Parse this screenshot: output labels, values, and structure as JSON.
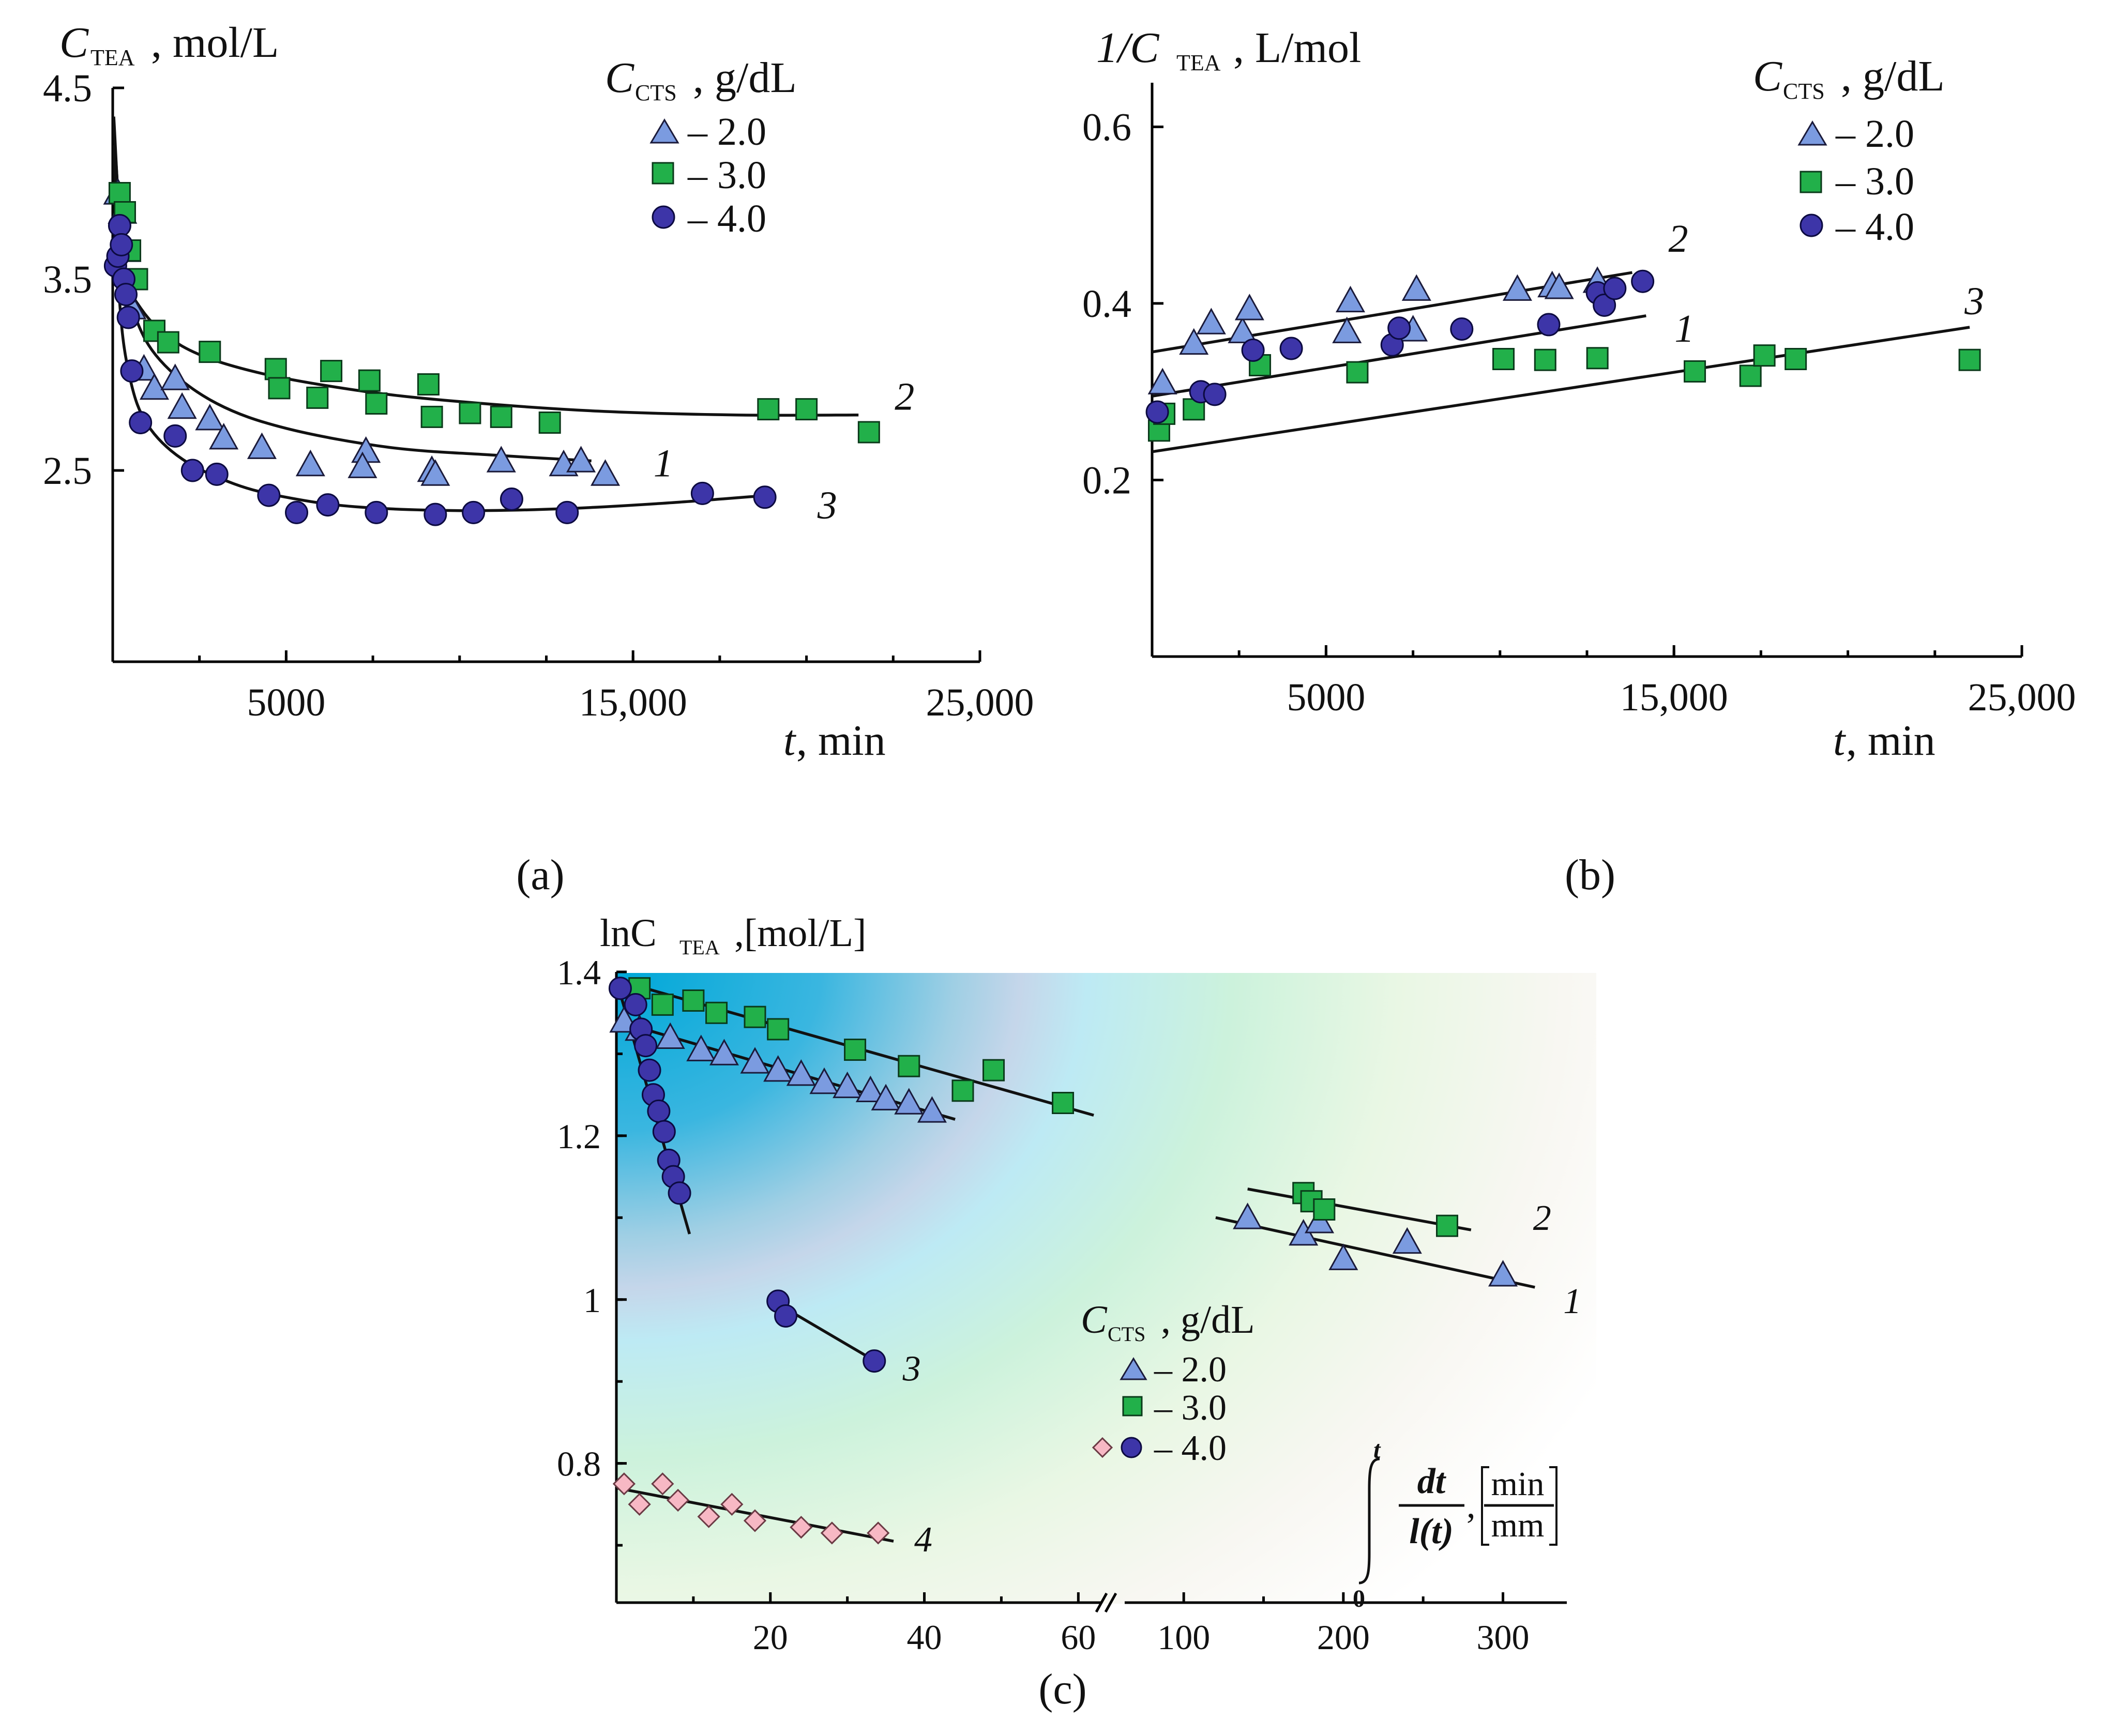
{
  "chart_data": [
    {
      "id": "a",
      "type": "scatter",
      "panel_label": "(a)",
      "ylabel_main": "C",
      "ylabel_sub": "TEA",
      "ylabel_unit": ", mol/L",
      "xlabel_var": "t",
      "xlabel_unit": ", min",
      "xlim": [
        0,
        25000
      ],
      "ylim": [
        1.5,
        4.5
      ],
      "xticks": [
        5000,
        15000,
        25000
      ],
      "xtick_labels": [
        "5000",
        "15,000",
        "25,000"
      ],
      "yticks": [
        2.5,
        3.5,
        4.5
      ],
      "ytick_labels": [
        "2.5",
        "3.5",
        "4.5"
      ],
      "legend": {
        "title_main": "C",
        "title_sub": "CTS",
        "title_unit": ", g/dL",
        "items": [
          {
            "marker": "triangle",
            "label": "– 2.0"
          },
          {
            "marker": "square",
            "label": "– 3.0"
          },
          {
            "marker": "circle",
            "label": "– 4.0"
          }
        ]
      },
      "series": [
        {
          "name": "2.0 g/dL",
          "marker": "triangle",
          "x": [
            150,
            280,
            400,
            550,
            900,
            1200,
            1800,
            2000,
            2800,
            3200,
            4300,
            5700,
            7300,
            7200,
            9200,
            9300,
            11200,
            13000,
            13500,
            14200
          ],
          "y": [
            3.95,
            3.85,
            3.65,
            3.35,
            3.03,
            2.93,
            2.98,
            2.83,
            2.77,
            2.67,
            2.62,
            2.53,
            2.6,
            2.52,
            2.5,
            2.48,
            2.55,
            2.53,
            2.55,
            2.48
          ]
        },
        {
          "name": "3.0 g/dL",
          "marker": "square",
          "x": [
            200,
            350,
            500,
            700,
            1200,
            1600,
            2800,
            4700,
            4800,
            5900,
            6300,
            7400,
            7600,
            9100,
            9200,
            10300,
            11200,
            12600,
            18900,
            20000,
            21800
          ],
          "y": [
            3.95,
            3.85,
            3.65,
            3.5,
            3.23,
            3.17,
            3.12,
            3.03,
            2.93,
            2.88,
            3.02,
            2.97,
            2.85,
            2.95,
            2.78,
            2.8,
            2.78,
            2.75,
            2.82,
            2.82,
            2.7
          ]
        },
        {
          "name": "4.0 g/dL",
          "marker": "circle",
          "x": [
            80,
            150,
            200,
            250,
            320,
            380,
            450,
            550,
            800,
            1800,
            2300,
            3000,
            4500,
            5300,
            6200,
            7600,
            9300,
            10400,
            11500,
            13100,
            17000,
            18800
          ],
          "y": [
            3.57,
            3.62,
            3.78,
            3.68,
            3.5,
            3.42,
            3.3,
            3.02,
            2.75,
            2.68,
            2.5,
            2.48,
            2.37,
            2.28,
            2.32,
            2.28,
            2.27,
            2.28,
            2.35,
            2.28,
            2.38,
            2.36
          ]
        }
      ],
      "fit_curves": [
        {
          "label": "1",
          "x": [
            30,
            300,
            700,
            1500,
            3000,
            5000,
            8000,
            11000,
            13800
          ],
          "y": [
            4.3,
            3.62,
            3.28,
            3.05,
            2.85,
            2.72,
            2.62,
            2.58,
            2.55
          ]
        },
        {
          "label": "2",
          "x": [
            30,
            300,
            800,
            2000,
            4000,
            7000,
            10000,
            14000,
            18000,
            21500
          ],
          "y": [
            4.35,
            3.6,
            3.35,
            3.15,
            3.02,
            2.92,
            2.86,
            2.81,
            2.79,
            2.79
          ]
        },
        {
          "label": "3",
          "x": [
            30,
            200,
            500,
            1000,
            2000,
            3500,
            5000,
            7000,
            10000,
            13000,
            16000,
            18900
          ],
          "y": [
            4.2,
            3.38,
            2.98,
            2.74,
            2.56,
            2.43,
            2.36,
            2.31,
            2.29,
            2.3,
            2.33,
            2.37
          ]
        }
      ]
    },
    {
      "id": "b",
      "type": "scatter",
      "panel_label": "(b)",
      "ylabel_main": "1/C",
      "ylabel_sub": "TEA",
      "ylabel_unit": ", L/mol",
      "xlabel_var": "t",
      "xlabel_unit": ", min",
      "xlim": [
        0,
        25000
      ],
      "ylim": [
        0.0,
        0.65
      ],
      "xticks": [
        5000,
        15000,
        25000
      ],
      "xtick_labels": [
        "5000",
        "15,000",
        "25,000"
      ],
      "yticks": [
        0.2,
        0.4,
        0.6
      ],
      "ytick_labels": [
        "0.2",
        "0.4",
        "0.6"
      ],
      "legend": {
        "title_main": "C",
        "title_sub": "CTS",
        "title_unit": ", g/dL",
        "items": [
          {
            "marker": "triangle",
            "label": "– 2.0"
          },
          {
            "marker": "square",
            "label": "– 3.0"
          },
          {
            "marker": "circle",
            "label": "– 4.0"
          }
        ]
      },
      "series": [
        {
          "name": "2.0 g/dL",
          "marker": "triangle",
          "x": [
            300,
            1200,
            1700,
            2600,
            2800,
            5600,
            5700,
            7500,
            7600,
            10500,
            11500,
            11700,
            12800
          ],
          "y": [
            0.31,
            0.355,
            0.378,
            0.368,
            0.394,
            0.368,
            0.403,
            0.37,
            0.416,
            0.416,
            0.42,
            0.418,
            0.425
          ]
        },
        {
          "name": "3.0 g/dL",
          "marker": "square",
          "x": [
            200,
            350,
            1200,
            3100,
            5900,
            10100,
            11300,
            12800,
            15600,
            17200,
            17600,
            18500,
            23500
          ],
          "y": [
            0.256,
            0.275,
            0.28,
            0.33,
            0.322,
            0.337,
            0.336,
            0.338,
            0.323,
            0.318,
            0.341,
            0.337,
            0.336
          ]
        },
        {
          "name": "4.0 g/dL",
          "marker": "circle",
          "x": [
            150,
            1400,
            1800,
            2900,
            4000,
            6900,
            7100,
            8900,
            11400,
            12800,
            13000,
            13300,
            14100
          ],
          "y": [
            0.277,
            0.3,
            0.297,
            0.347,
            0.349,
            0.353,
            0.372,
            0.371,
            0.376,
            0.412,
            0.398,
            0.417,
            0.425
          ]
        }
      ],
      "fit_curves": [
        {
          "label": "1",
          "x": [
            0,
            14200
          ],
          "y": [
            0.295,
            0.386
          ]
        },
        {
          "label": "2",
          "x": [
            0,
            13800
          ],
          "y": [
            0.345,
            0.435
          ]
        },
        {
          "label": "3",
          "x": [
            0,
            23500
          ],
          "y": [
            0.232,
            0.373
          ]
        }
      ]
    },
    {
      "id": "c",
      "type": "scatter",
      "panel_label": "(c)",
      "ylabel_main": "lnC",
      "ylabel_sub": "TEA",
      "ylabel_unit": ",[mol/L]",
      "x_break": true,
      "xlim_left": [
        0,
        63
      ],
      "xlim_right": [
        63,
        340
      ],
      "ylim": [
        0.63,
        1.4
      ],
      "xticks_left": [
        20,
        40,
        60
      ],
      "xtick_labels_left": [
        "20",
        "40",
        "60"
      ],
      "xticks_right": [
        100,
        200,
        300
      ],
      "xtick_labels_right": [
        "100",
        "200",
        "300"
      ],
      "yticks": [
        0.8,
        1.0,
        1.2,
        1.4
      ],
      "ytick_labels": [
        "0.8",
        "1",
        "1.2",
        "1.4"
      ],
      "xlabel": {
        "upper": "t",
        "lower": "0",
        "num": "dt",
        "den": "l(t)",
        "unit_num": "min",
        "unit_den": "mm",
        "sep": ","
      },
      "legend": {
        "title_main": "C",
        "title_sub": "CTS",
        "title_unit": ", g/dL",
        "items": [
          {
            "marker": "triangle",
            "label": "– 2.0"
          },
          {
            "marker": "square",
            "label": "– 3.0"
          },
          {
            "marker": "diamond-circle",
            "label": "– 4.0"
          }
        ]
      },
      "series": [
        {
          "name": "2.0 g/dL",
          "marker": "triangle",
          "x": [
            1,
            3,
            7,
            11,
            14,
            18,
            21,
            24,
            27,
            30,
            33,
            35,
            38,
            41,
            140,
            175,
            185,
            200,
            240,
            300
          ],
          "y": [
            1.34,
            1.33,
            1.32,
            1.305,
            1.3,
            1.29,
            1.28,
            1.275,
            1.265,
            1.26,
            1.255,
            1.245,
            1.24,
            1.23,
            1.1,
            1.08,
            1.095,
            1.05,
            1.07,
            1.03
          ]
        },
        {
          "name": "3.0 g/dL",
          "marker": "square",
          "x": [
            3,
            6,
            10,
            13,
            18,
            21,
            31,
            38,
            45,
            49,
            58,
            175,
            180,
            188,
            265
          ],
          "y": [
            1.38,
            1.36,
            1.365,
            1.35,
            1.345,
            1.33,
            1.305,
            1.285,
            1.255,
            1.28,
            1.24,
            1.13,
            1.12,
            1.11,
            1.09
          ]
        },
        {
          "name": "4.0 g/dL (circles)",
          "marker": "circle",
          "x": [
            0.5,
            2.5,
            3.2,
            3.8,
            4.3,
            4.8,
            5.5,
            6.2,
            6.8,
            7.4,
            8.2,
            21,
            22,
            33.5
          ],
          "y": [
            1.38,
            1.36,
            1.33,
            1.31,
            1.28,
            1.25,
            1.23,
            1.205,
            1.17,
            1.15,
            1.13,
            0.998,
            0.98,
            0.925
          ]
        },
        {
          "name": "4.0 g/dL (diamonds)",
          "marker": "diamond",
          "x": [
            1,
            3,
            6,
            8,
            12,
            15,
            18,
            24,
            28,
            34
          ],
          "y": [
            0.775,
            0.75,
            0.775,
            0.755,
            0.735,
            0.75,
            0.73,
            0.722,
            0.715,
            0.715
          ]
        }
      ],
      "fit_lines": [
        {
          "label": "",
          "x": [
            0,
            62
          ],
          "y": [
            1.39,
            1.225
          ]
        },
        {
          "label": "",
          "x": [
            0,
            44
          ],
          "y": [
            1.34,
            1.22
          ]
        },
        {
          "label": "",
          "x": [
            0,
            9.5
          ],
          "y": [
            1.39,
            1.08
          ]
        },
        {
          "label": "3",
          "x": [
            20,
            34.5
          ],
          "y": [
            1.0,
            0.92
          ]
        },
        {
          "label": "4",
          "x": [
            0,
            36
          ],
          "y": [
            0.77,
            0.705
          ]
        },
        {
          "label": "2",
          "x": [
            140,
            280
          ],
          "y": [
            1.135,
            1.085
          ]
        },
        {
          "label": "1",
          "x": [
            120,
            320
          ],
          "y": [
            1.1,
            1.015
          ]
        }
      ]
    }
  ]
}
